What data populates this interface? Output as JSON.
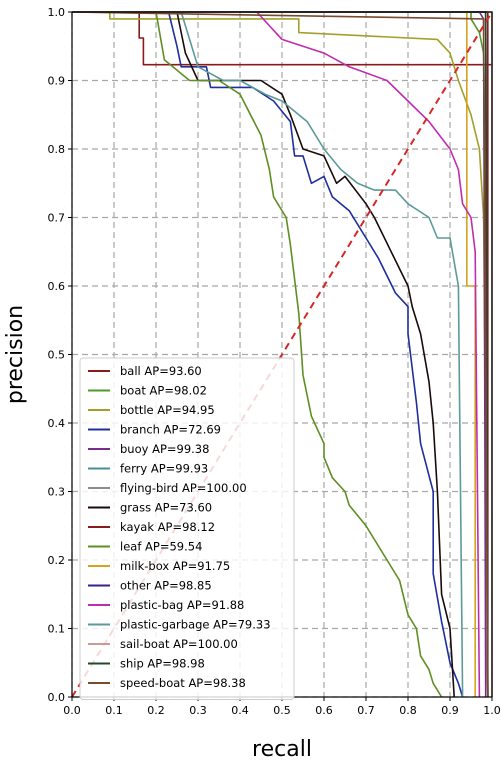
{
  "chart_data": {
    "type": "line",
    "xlabel": "recall",
    "ylabel": "precision",
    "xlim": [
      0,
      1
    ],
    "ylim": [
      0,
      1
    ],
    "xticks": [
      "0.0",
      "0.1",
      "0.2",
      "0.3",
      "0.4",
      "0.5",
      "0.6",
      "0.7",
      "0.8",
      "0.9",
      "1.0"
    ],
    "yticks": [
      "0.0",
      "0.1",
      "0.2",
      "0.3",
      "0.4",
      "0.5",
      "0.6",
      "0.7",
      "0.8",
      "0.9",
      "1.0"
    ],
    "grid": true,
    "legend_position": "lower-left",
    "diagonal": {
      "x": [
        0,
        1
      ],
      "y": [
        0,
        1
      ],
      "color": "#d62728",
      "style": "dashed"
    },
    "series": [
      {
        "name": "ball AP=93.60",
        "color": "#8b1a1a",
        "x": [
          0,
          0.16,
          0.16,
          0.17,
          0.17,
          1.0
        ],
        "y": [
          1.0,
          1.0,
          0.962,
          0.962,
          0.923,
          0.923
        ]
      },
      {
        "name": "boat AP=98.02",
        "color": "#4d9a2a",
        "x": [
          0,
          0.95,
          0.95,
          0.97,
          0.98,
          0.99
        ],
        "y": [
          1.0,
          1.0,
          0.99,
          0.97,
          0.94,
          0.0
        ]
      },
      {
        "name": "bottle AP=94.95",
        "color": "#a3a02a",
        "x": [
          0,
          0.09,
          0.09,
          0.54,
          0.54,
          0.87,
          0.9,
          0.92,
          0.95,
          0.97,
          0.98,
          0.99
        ],
        "y": [
          1.0,
          1.0,
          0.99,
          0.99,
          0.97,
          0.96,
          0.94,
          0.9,
          0.85,
          0.8,
          0.7,
          0.0
        ]
      },
      {
        "name": "branch AP=72.69",
        "color": "#1e2f9e",
        "x": [
          0,
          0.23,
          0.25,
          0.26,
          0.32,
          0.33,
          0.43,
          0.48,
          0.52,
          0.53,
          0.55,
          0.57,
          0.6,
          0.62,
          0.66,
          0.7,
          0.73,
          0.77,
          0.8,
          0.8,
          0.82,
          0.83,
          0.86,
          0.86,
          0.88,
          0.9,
          0.92,
          0.93
        ],
        "y": [
          1.0,
          1.0,
          0.95,
          0.92,
          0.92,
          0.89,
          0.89,
          0.87,
          0.84,
          0.79,
          0.79,
          0.75,
          0.76,
          0.73,
          0.71,
          0.67,
          0.64,
          0.59,
          0.57,
          0.53,
          0.43,
          0.37,
          0.3,
          0.18,
          0.11,
          0.05,
          0.02,
          0.0
        ]
      },
      {
        "name": "buoy AP=99.38",
        "color": "#7b2d8e",
        "x": [
          0,
          0.97,
          0.98,
          0.985
        ],
        "y": [
          1.0,
          1.0,
          0.99,
          0.0
        ]
      },
      {
        "name": "ferry AP=99.93",
        "color": "#4a8f8f",
        "x": [
          0,
          0.985,
          0.99
        ],
        "y": [
          1.0,
          1.0,
          0.0
        ]
      },
      {
        "name": "flying-bird AP=100.00",
        "color": "#8c8c8c",
        "x": [
          0,
          1.0,
          1.0
        ],
        "y": [
          1.0,
          1.0,
          0.0
        ]
      },
      {
        "name": "grass AP=73.60",
        "color": "#1a0a0a",
        "x": [
          0,
          0.25,
          0.27,
          0.3,
          0.45,
          0.5,
          0.52,
          0.55,
          0.6,
          0.63,
          0.65,
          0.7,
          0.72,
          0.76,
          0.8,
          0.81,
          0.83,
          0.85,
          0.86,
          0.87,
          0.88,
          0.9,
          0.91
        ],
        "y": [
          1.0,
          1.0,
          0.94,
          0.9,
          0.9,
          0.88,
          0.85,
          0.8,
          0.79,
          0.75,
          0.76,
          0.72,
          0.7,
          0.65,
          0.6,
          0.57,
          0.53,
          0.46,
          0.4,
          0.3,
          0.15,
          0.1,
          0.0
        ]
      },
      {
        "name": "kayak AP=98.12",
        "color": "#8b1a1a",
        "x": [
          0,
          0.99,
          0.99
        ],
        "y": [
          1.0,
          1.0,
          0.0
        ]
      },
      {
        "name": "leaf AP=59.54",
        "color": "#5f8f24",
        "x": [
          0,
          0.2,
          0.22,
          0.28,
          0.35,
          0.4,
          0.45,
          0.47,
          0.48,
          0.51,
          0.52,
          0.53,
          0.54,
          0.55,
          0.57,
          0.6,
          0.6,
          0.62,
          0.65,
          0.66,
          0.7,
          0.72,
          0.75,
          0.78,
          0.8,
          0.82,
          0.83,
          0.85,
          0.86,
          0.88
        ],
        "y": [
          1.0,
          1.0,
          0.93,
          0.9,
          0.9,
          0.88,
          0.82,
          0.77,
          0.73,
          0.7,
          0.66,
          0.61,
          0.56,
          0.47,
          0.41,
          0.37,
          0.35,
          0.32,
          0.3,
          0.28,
          0.25,
          0.23,
          0.2,
          0.17,
          0.12,
          0.1,
          0.06,
          0.04,
          0.02,
          0.0
        ]
      },
      {
        "name": "milk-box AP=91.75",
        "color": "#d4a21c",
        "x": [
          0,
          0.94,
          0.94,
          0.96,
          0.96
        ],
        "y": [
          1.0,
          1.0,
          0.6,
          0.6,
          0.0
        ]
      },
      {
        "name": "other AP=98.85",
        "color": "#3b1f8e",
        "x": [
          0,
          0.985,
          0.99
        ],
        "y": [
          1.0,
          1.0,
          0.0
        ]
      },
      {
        "name": "plastic-bag AP=91.88",
        "color": "#c02cb0",
        "x": [
          0,
          0.44,
          0.5,
          0.6,
          0.66,
          0.75,
          0.8,
          0.85,
          0.9,
          0.92,
          0.93,
          0.95,
          0.96,
          0.97
        ],
        "y": [
          1.0,
          1.0,
          0.96,
          0.94,
          0.92,
          0.9,
          0.87,
          0.84,
          0.8,
          0.77,
          0.72,
          0.7,
          0.65,
          0.0
        ]
      },
      {
        "name": "plastic-garbage AP=79.33",
        "color": "#5c9a9a",
        "x": [
          0,
          0.26,
          0.3,
          0.36,
          0.4,
          0.46,
          0.5,
          0.56,
          0.6,
          0.64,
          0.68,
          0.72,
          0.77,
          0.8,
          0.85,
          0.87,
          0.9,
          0.92,
          0.93
        ],
        "y": [
          1.0,
          1.0,
          0.92,
          0.9,
          0.9,
          0.88,
          0.87,
          0.84,
          0.8,
          0.77,
          0.75,
          0.74,
          0.74,
          0.72,
          0.7,
          0.67,
          0.67,
          0.6,
          0.0
        ]
      },
      {
        "name": "sail-boat AP=100.00",
        "color": "#c89a9a",
        "x": [
          0,
          1.0,
          1.0
        ],
        "y": [
          1.0,
          1.0,
          0.0
        ]
      },
      {
        "name": "ship AP=98.98",
        "color": "#1f4a2a",
        "x": [
          0,
          0.985,
          0.99
        ],
        "y": [
          1.0,
          1.0,
          0.0
        ]
      },
      {
        "name": "speed-boat AP=98.38",
        "color": "#7a4a2a",
        "x": [
          0,
          0.98,
          0.99
        ],
        "y": [
          1.0,
          0.99,
          0.0
        ]
      }
    ]
  }
}
